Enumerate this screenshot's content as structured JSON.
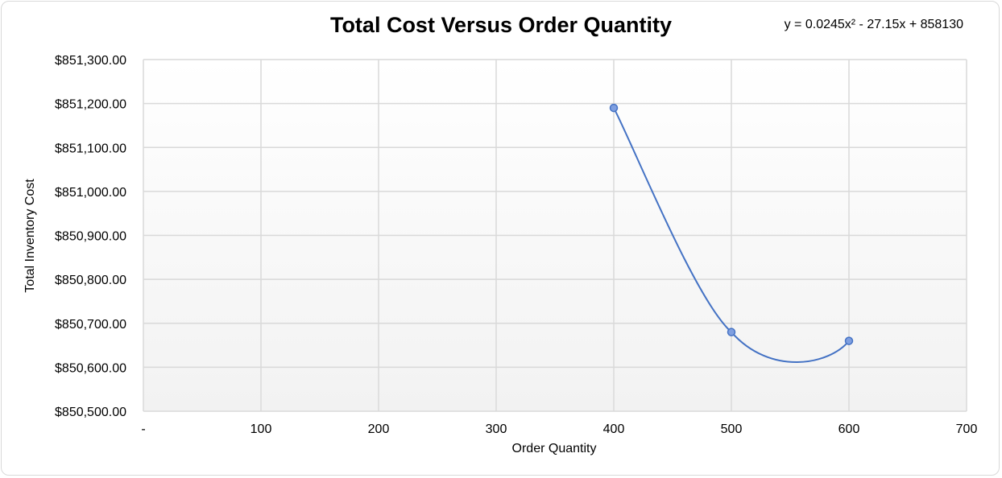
{
  "chart_data": {
    "type": "scatter",
    "title": "Total Cost Versus Order Quantity",
    "trendline_equation": "y = 0.0245x² - 27.15x + 858130",
    "xlabel": "Order Quantity",
    "ylabel": "Total Inventory Cost",
    "xlim": [
      0,
      700
    ],
    "ylim": [
      850500,
      851300
    ],
    "x_ticks": [
      "-",
      "100",
      "200",
      "300",
      "400",
      "500",
      "600",
      "700"
    ],
    "y_ticks": [
      "$850,500.00",
      "$850,600.00",
      "$850,700.00",
      "$850,800.00",
      "$850,900.00",
      "$851,000.00",
      "$851,100.00",
      "$851,200.00",
      "$851,300.00"
    ],
    "series": [
      {
        "x": [
          400,
          500,
          600
        ],
        "y": [
          851190,
          850680,
          850660
        ]
      }
    ],
    "line_style": "smooth",
    "grid": true,
    "legend": "none",
    "colors": {
      "series": "#4472c4",
      "marker_fill": "#7f9fe0",
      "grid": "#d9d9d9",
      "plot_bg_top": "#ffffff",
      "plot_bg_bottom": "#f2f2f2"
    }
  }
}
